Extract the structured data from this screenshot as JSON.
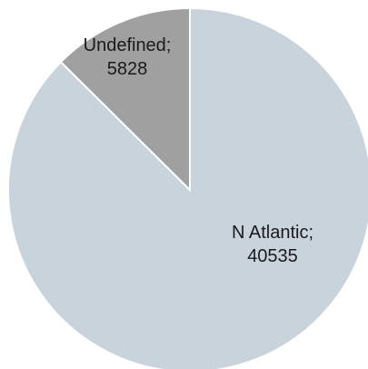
{
  "chart_data": {
    "type": "pie",
    "title": "",
    "slices": [
      {
        "label": "N Atlantic",
        "value": 40535,
        "color": "#c9d3dc",
        "label_text": "N Atlantic;",
        "value_text": "40535"
      },
      {
        "label": "Undefined",
        "value": 5828,
        "color": "#a0a0a0",
        "label_text": "Undefined;",
        "value_text": "5828"
      }
    ],
    "start_angle": "top",
    "direction": "clockwise",
    "legend": "none",
    "data_labels": "category; value",
    "slice_border_color": "#ffffff"
  }
}
